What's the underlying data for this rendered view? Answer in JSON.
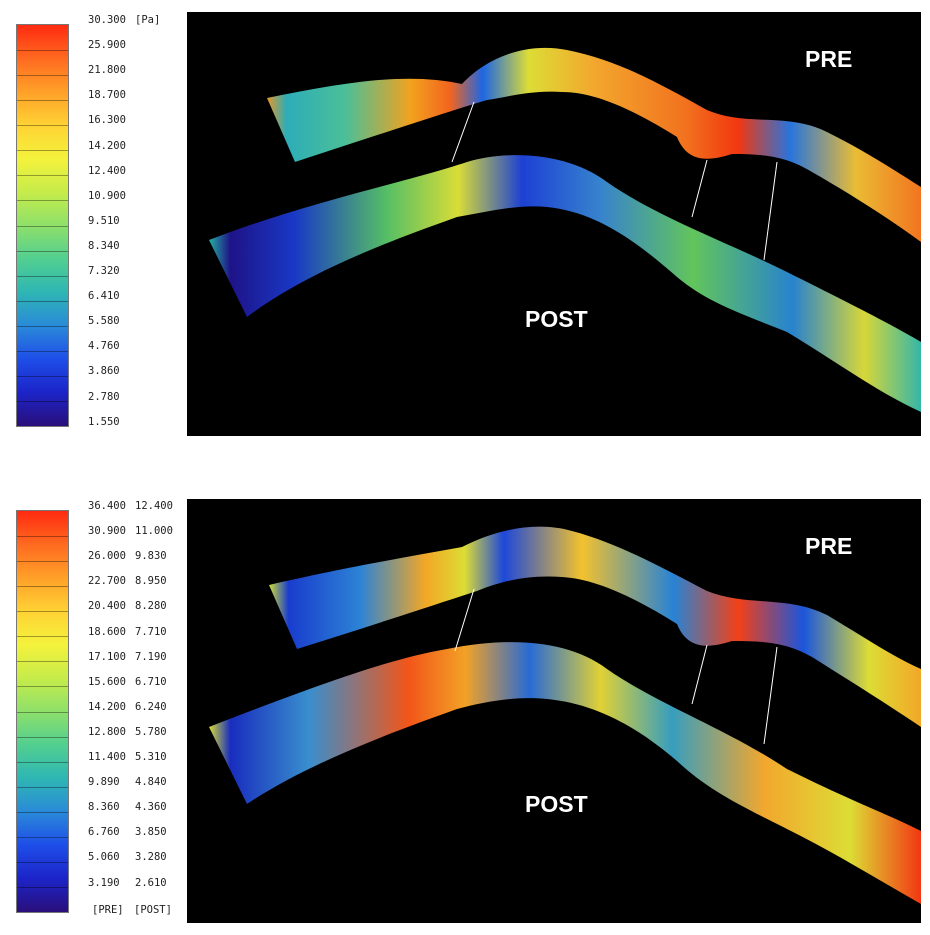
{
  "top": {
    "unit": "[Pa]",
    "scale_labels": [
      "30.300",
      "25.900",
      "21.800",
      "18.700",
      "16.300",
      "14.200",
      "12.400",
      "10.900",
      "9.510",
      "8.340",
      "7.320",
      "6.410",
      "5.580",
      "4.760",
      "3.860",
      "2.780",
      "1.550"
    ],
    "pre_label": "PRE",
    "post_label": "POST"
  },
  "bottom": {
    "pre_values": [
      "36.400",
      "30.900",
      "26.000",
      "22.700",
      "20.400",
      "18.600",
      "17.100",
      "15.600",
      "14.200",
      "12.800",
      "11.400",
      "9.890",
      "8.360",
      "6.760",
      "5.060",
      "3.190"
    ],
    "post_values": [
      "12.400",
      "11.000",
      "9.830",
      "8.950",
      "8.280",
      "7.710",
      "7.190",
      "6.710",
      "6.240",
      "5.780",
      "5.310",
      "4.840",
      "4.360",
      "3.850",
      "3.280",
      "2.610"
    ],
    "pre_footer": "[PRE]",
    "post_footer": "[POST]",
    "pre_label": "PRE",
    "post_label": "POST"
  },
  "colors": {
    "scale_top": "#ff2a10",
    "scale_bottom": "#2a0f7a",
    "view_bg": "#000000"
  }
}
